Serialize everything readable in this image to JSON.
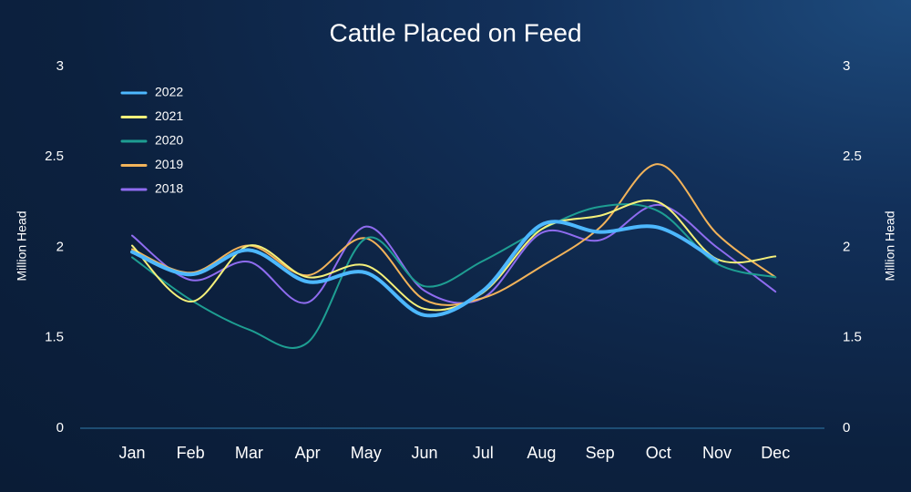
{
  "chart_data": {
    "type": "line",
    "title": "Cattle Placed on Feed",
    "y_label": "Million Head",
    "y2_label": "Million Head",
    "categories": [
      "Jan",
      "Feb",
      "Mar",
      "Apr",
      "May",
      "Jun",
      "Jul",
      "Aug",
      "Sep",
      "Oct",
      "Nov",
      "Dec"
    ],
    "series": [
      {
        "name": "2022",
        "color": "#4db8ff",
        "values": [
          1.975,
          1.85,
          1.985,
          1.81,
          1.86,
          1.625,
          1.76,
          2.125,
          2.085,
          2.11,
          1.925,
          null
        ]
      },
      {
        "name": "2021",
        "color": "#f5f07a",
        "values": [
          2.01,
          1.7,
          2.01,
          1.835,
          1.9,
          1.66,
          1.75,
          2.1,
          2.175,
          2.25,
          1.935,
          1.95
        ]
      },
      {
        "name": "2020",
        "color": "#1e9e92",
        "values": [
          1.945,
          1.71,
          1.545,
          1.42,
          2.05,
          1.785,
          1.925,
          2.1,
          2.225,
          2.2,
          1.91,
          1.835
        ]
      },
      {
        "name": "2019",
        "color": "#f2b35a",
        "values": [
          1.99,
          1.86,
          2.01,
          1.845,
          2.05,
          1.71,
          1.72,
          1.895,
          2.11,
          2.46,
          2.075,
          1.835
        ]
      },
      {
        "name": "2018",
        "color": "#8f6cf0",
        "values": [
          2.065,
          1.82,
          1.92,
          1.695,
          2.115,
          1.76,
          1.72,
          2.08,
          2.04,
          2.235,
          2.0,
          1.755
        ]
      }
    ],
    "ylim": [
      0,
      3
    ],
    "yticks": [
      0,
      1.5,
      2,
      2.5,
      3
    ],
    "y2lim": [
      0,
      3
    ],
    "y2ticks": [
      0,
      1.5,
      2,
      2.5,
      3
    ],
    "legend": "upper-left"
  }
}
